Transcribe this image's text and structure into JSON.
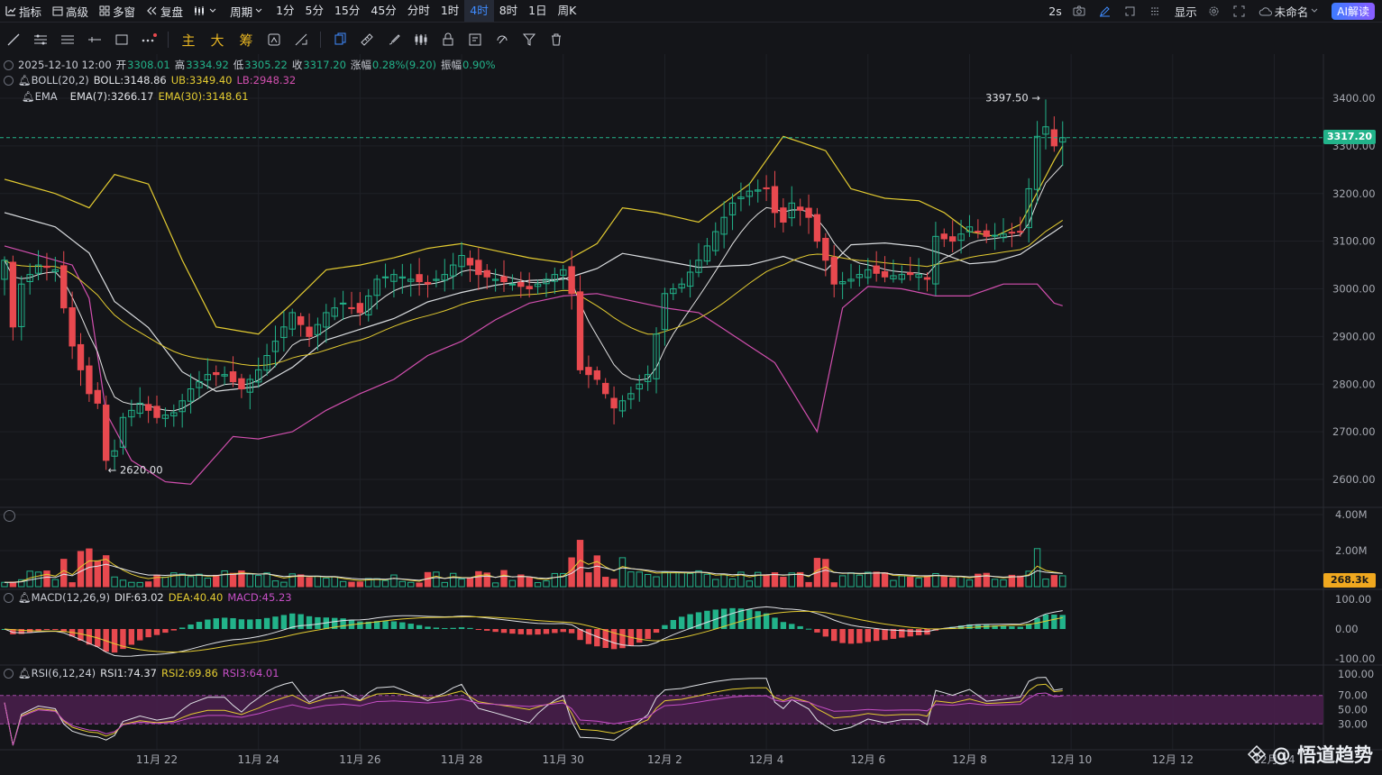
{
  "topbar": {
    "indicator_label": "指标",
    "advanced_label": "高级",
    "multiwindow_label": "多窗",
    "replay_label": "复盘",
    "cycle_label": "周期",
    "periods": [
      "1分",
      "5分",
      "15分",
      "45分",
      "分时",
      "1时",
      "4时",
      "8时",
      "1日",
      "周K"
    ],
    "active_period": "4时",
    "refresh": "2s",
    "display_label": "显示",
    "workspace_name": "未命名",
    "ai_button": "AI解读"
  },
  "toolbar": {
    "text_tools": [
      "主",
      "大",
      "筹"
    ]
  },
  "ohlc_legend": {
    "datetime": "2025-12-10 12:00",
    "open_label": "开",
    "open": "3308.01",
    "high_label": "高",
    "high": "3334.92",
    "low_label": "低",
    "low": "3305.22",
    "close_label": "收",
    "close": "3317.20",
    "change_label": "涨幅",
    "change": "0.28%(9.20)",
    "amplitude_label": "振幅",
    "amplitude": "0.90%"
  },
  "boll_legend": {
    "name": "BOLL(20,2)",
    "mid": "BOLL:3148.86",
    "ub": "UB:3349.40",
    "lb": "LB:2948.32"
  },
  "ema_legend": {
    "name": "EMA",
    "ema7": "EMA(7):3266.17",
    "ema30": "EMA(30):3148.61"
  },
  "macd_legend": {
    "name": "MACD(12,26,9)",
    "dif": "DIF:63.02",
    "dea": "DEA:40.40",
    "macd": "MACD:45.23"
  },
  "rsi_legend": {
    "name": "RSI(6,12,24)",
    "rsi1": "RSI1:74.37",
    "rsi2": "RSI2:69.86",
    "rsi3": "RSI3:64.01"
  },
  "price_markers": {
    "high": "3397.50",
    "low": "2620.00"
  },
  "last_price": "3317.20",
  "last_volume": "268.3k",
  "watermark": "@ 悟道趋势",
  "colors": {
    "up": "#22b38a",
    "down": "#e8494f",
    "boll_mid": "#d9dcdf",
    "boll_upper": "#e3cb31",
    "boll_lower": "#d14fae",
    "ema7": "#e3e3e3",
    "ema30": "#e3cb31",
    "rsi3": "#c64fc6",
    "rsi_band": "#4a1f4d",
    "accent": "#3f8cff"
  },
  "chart_data": {
    "type": "candlestick",
    "price_axis": {
      "ticks": [
        2600,
        2700,
        2800,
        2900,
        3000,
        3100,
        3200,
        3300,
        3400
      ],
      "labels": [
        "2600.00",
        "2700.00",
        "2800.00",
        "2900.00",
        "3000.00",
        "3100.00",
        "3200.00",
        "3300.00",
        "3400.00"
      ],
      "range": [
        2545,
        3450
      ]
    },
    "volume_axis": {
      "labels": [
        "4.00M",
        "2.00M"
      ],
      "ticks": [
        4000000,
        2000000
      ]
    },
    "macd_axis": {
      "labels": [
        "100.00",
        "0.00",
        "-100.00"
      ],
      "ticks": [
        100,
        0,
        -100
      ],
      "range": [
        -105,
        105
      ]
    },
    "rsi_axis": {
      "labels": [
        "100.00",
        "70.00",
        "50.00",
        "30.00"
      ],
      "ticks": [
        100,
        70,
        50,
        30
      ],
      "range": [
        0,
        105
      ]
    },
    "x_labels": [
      "11月 22",
      "11月 24",
      "11月 26",
      "11月 28",
      "11月 30",
      "12月 2",
      "12月 4",
      "12月 6",
      "12月 8",
      "12月 10",
      "12月 12",
      "12月 14"
    ],
    "x_label_index": [
      18,
      30,
      42,
      54,
      66,
      78,
      90,
      102,
      114,
      126,
      138,
      150
    ],
    "upper_band_anchors": [
      [
        0,
        3230
      ],
      [
        6,
        3200
      ],
      [
        10,
        3170
      ],
      [
        13,
        3240
      ],
      [
        17,
        3220
      ],
      [
        21,
        3060
      ],
      [
        25,
        2920
      ],
      [
        30,
        2905
      ],
      [
        34,
        2970
      ],
      [
        38,
        3040
      ],
      [
        42,
        3050
      ],
      [
        46,
        3065
      ],
      [
        50,
        3085
      ],
      [
        54,
        3095
      ],
      [
        58,
        3080
      ],
      [
        62,
        3065
      ],
      [
        66,
        3055
      ],
      [
        68,
        3075
      ],
      [
        70,
        3095
      ],
      [
        73,
        3170
      ],
      [
        77,
        3160
      ],
      [
        82,
        3140
      ],
      [
        88,
        3220
      ],
      [
        92,
        3320
      ],
      [
        97,
        3290
      ],
      [
        100,
        3210
      ],
      [
        104,
        3190
      ],
      [
        108,
        3185
      ],
      [
        111,
        3160
      ],
      [
        114,
        3120
      ],
      [
        117,
        3110
      ],
      [
        120,
        3135
      ],
      [
        124,
        3270
      ],
      [
        126,
        3330
      ],
      [
        128,
        3355
      ],
      [
        130,
        3349
      ]
    ],
    "lower_band_anchors": [
      [
        0,
        3090
      ],
      [
        4,
        3070
      ],
      [
        8,
        3050
      ],
      [
        10,
        2980
      ],
      [
        12,
        2740
      ],
      [
        15,
        2640
      ],
      [
        19,
        2595
      ],
      [
        22,
        2590
      ],
      [
        27,
        2690
      ],
      [
        30,
        2685
      ],
      [
        34,
        2700
      ],
      [
        38,
        2745
      ],
      [
        42,
        2780
      ],
      [
        46,
        2810
      ],
      [
        50,
        2860
      ],
      [
        54,
        2890
      ],
      [
        58,
        2935
      ],
      [
        62,
        2970
      ],
      [
        66,
        2985
      ],
      [
        70,
        2990
      ],
      [
        74,
        2975
      ],
      [
        78,
        2960
      ],
      [
        82,
        2950
      ],
      [
        88,
        2880
      ],
      [
        91,
        2845
      ],
      [
        96,
        2700
      ],
      [
        99,
        2960
      ],
      [
        102,
        3005
      ],
      [
        106,
        3000
      ],
      [
        110,
        2985
      ],
      [
        114,
        2985
      ],
      [
        118,
        3010
      ],
      [
        122,
        3010
      ],
      [
        124,
        2970
      ],
      [
        128,
        2948
      ],
      [
        130,
        2948
      ]
    ]
  }
}
